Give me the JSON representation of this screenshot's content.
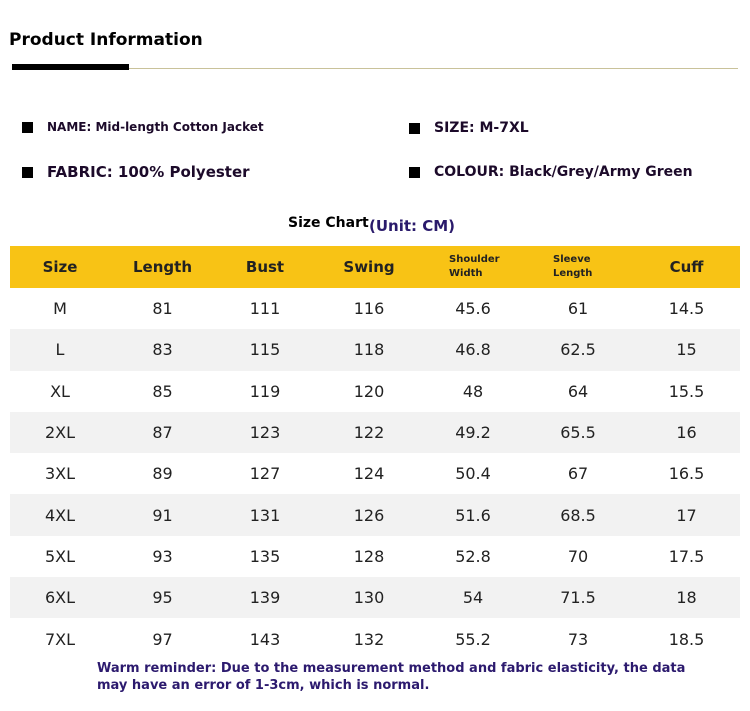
{
  "page": {
    "title": "Product Information"
  },
  "info": {
    "name": "NAME: Mid-length Cotton Jacket",
    "size": "SIZE: M-7XL",
    "fabric": "FABRIC: 100% Polyester",
    "colour": "COLOUR: Black/Grey/Army Green"
  },
  "chart": {
    "title": "Size Chart",
    "unit": "(Unit: CM)"
  },
  "table": {
    "headers": [
      "Size",
      "Length",
      "Bust",
      "Swing",
      "Shoulder Width",
      "Sleeve Length",
      "Cuff"
    ],
    "rows": [
      [
        "M",
        "81",
        "111",
        "116",
        "45.6",
        "61",
        "14.5"
      ],
      [
        "L",
        "83",
        "115",
        "118",
        "46.8",
        "62.5",
        "15"
      ],
      [
        "XL",
        "85",
        "119",
        "120",
        "48",
        "64",
        "15.5"
      ],
      [
        "2XL",
        "87",
        "123",
        "122",
        "49.2",
        "65.5",
        "16"
      ],
      [
        "3XL",
        "89",
        "127",
        "124",
        "50.4",
        "67",
        "16.5"
      ],
      [
        "4XL",
        "91",
        "131",
        "126",
        "51.6",
        "68.5",
        "17"
      ],
      [
        "5XL",
        "93",
        "135",
        "128",
        "52.8",
        "70",
        "17.5"
      ],
      [
        "6XL",
        "95",
        "139",
        "130",
        "54",
        "71.5",
        "18"
      ],
      [
        "7XL",
        "97",
        "143",
        "132",
        "55.2",
        "73",
        "18.5"
      ]
    ]
  },
  "reminder": "Warm reminder: Due to the measurement method and fabric elasticity, the data may have an error of 1-3cm, which is normal.",
  "colors": {
    "header_bg": "#f8c315",
    "alt_row_bg": "#f2f2f2",
    "text_purple": "#2c1a6e"
  }
}
